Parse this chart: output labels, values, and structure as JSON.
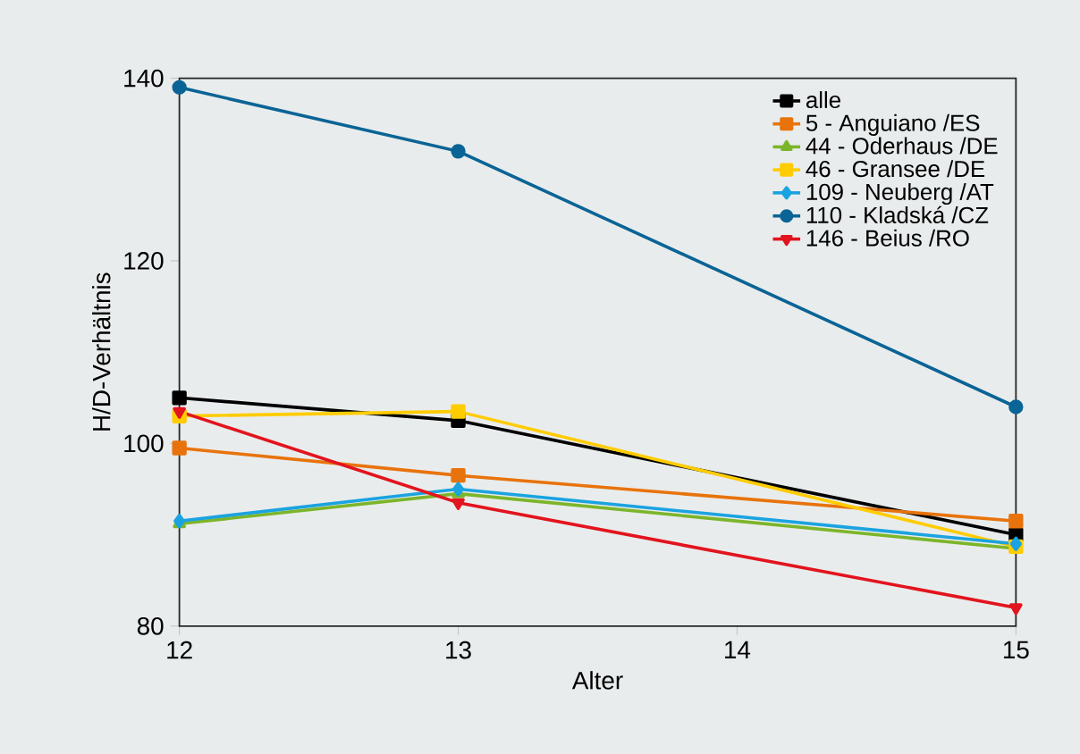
{
  "chart_data": {
    "type": "line",
    "xlabel": "Alter",
    "ylabel": "H/D-Verhältnis",
    "x": [
      12,
      13,
      15
    ],
    "xlim": [
      12,
      15
    ],
    "xticks": [
      12,
      13,
      14,
      15
    ],
    "ylim": [
      80,
      140
    ],
    "yticks": [
      80,
      100,
      120,
      140
    ],
    "grid": false,
    "legend": "top right",
    "series": [
      {
        "name": "alle",
        "color": "#000000",
        "marker": "square",
        "values": [
          105,
          102.5,
          90
        ]
      },
      {
        "name": "5 - Anguiano /ES",
        "color": "#e8730c",
        "marker": "square",
        "values": [
          99.5,
          96.5,
          91.5
        ]
      },
      {
        "name": "44 - Oderhaus /DE",
        "color": "#7cb52a",
        "marker": "triangle",
        "values": [
          91.2,
          94.5,
          88.5
        ]
      },
      {
        "name": "46 - Gransee /DE",
        "color": "#ffcc00",
        "marker": "square",
        "values": [
          103,
          103.5,
          88.7
        ]
      },
      {
        "name": "109 - Neuberg /AT",
        "color": "#1aa3e0",
        "marker": "diamond",
        "values": [
          91.5,
          95,
          89
        ]
      },
      {
        "name": "110 - Kladská /CZ",
        "color": "#0a6496",
        "marker": "circle",
        "values": [
          139,
          132,
          104
        ]
      },
      {
        "name": "146 - Beius /RO",
        "color": "#e2141e",
        "marker": "triangle down",
        "values": [
          103.5,
          93.5,
          82
        ]
      }
    ]
  }
}
